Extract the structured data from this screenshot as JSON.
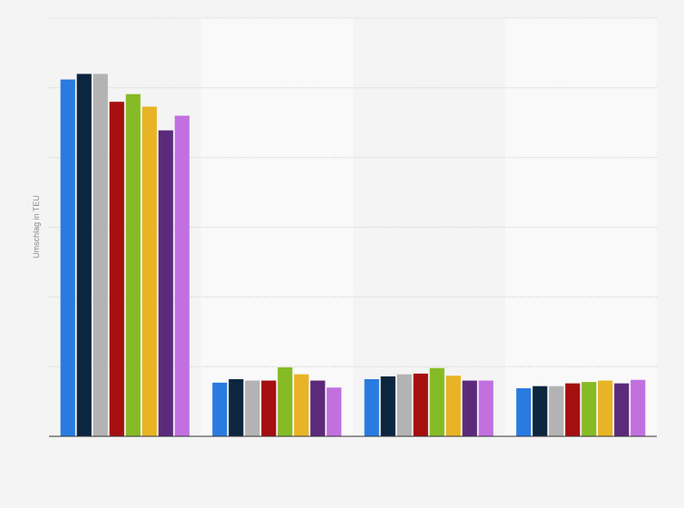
{
  "chart_data": {
    "type": "bar",
    "title": "",
    "xlabel": "",
    "ylabel": "Umschlag in TEU",
    "ylim": [
      0,
      600
    ],
    "grid": true,
    "categories": [
      "",
      "",
      "",
      ""
    ],
    "series": [
      {
        "color": "#2a7be0",
        "values": [
          512,
          77,
          82,
          69
        ]
      },
      {
        "color": "#0d2640",
        "values": [
          520,
          82,
          86,
          72
        ]
      },
      {
        "color": "#b3b3b3",
        "values": [
          520,
          80,
          89,
          72
        ]
      },
      {
        "color": "#a50f0f",
        "values": [
          480,
          80,
          90,
          76
        ]
      },
      {
        "color": "#86bb25",
        "values": [
          491,
          99,
          98,
          78
        ]
      },
      {
        "color": "#e8b324",
        "values": [
          473,
          89,
          87,
          80
        ]
      },
      {
        "color": "#5c2a7a",
        "values": [
          439,
          80,
          80,
          76
        ]
      },
      {
        "color": "#c270e0",
        "values": [
          460,
          70,
          80,
          81
        ]
      }
    ],
    "legend": "none"
  },
  "colors": {
    "background": "#f4f4f4",
    "band": "#f9f9f9",
    "gridline": "#cccccc",
    "axis": "#333333",
    "label": "#888888"
  }
}
